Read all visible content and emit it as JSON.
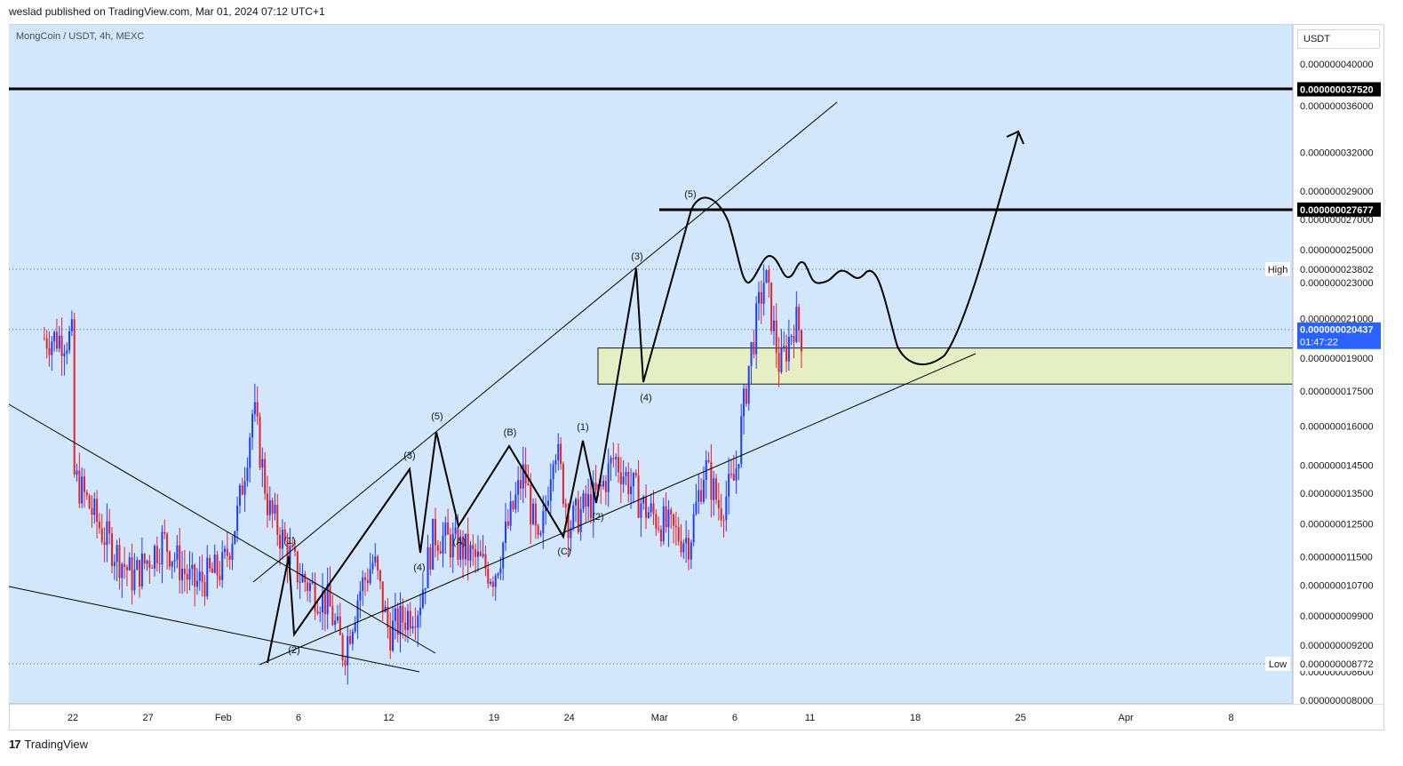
{
  "header": {
    "publish_line": "weslad published on TradingView.com, Mar 01, 2024 07:12 UTC+1"
  },
  "symbol_label": "MongCoin / USDT, 4h, MEXC",
  "currency_label": "USDT",
  "footer": {
    "logo_mark": "17",
    "logo_text": "TradingView"
  },
  "colors": {
    "background": "#d2e7fb",
    "up_candle": "#1e3cff",
    "down_candle": "#e8202a",
    "zone_fill": "#e6efc4",
    "price_tag": "#2962ff",
    "axis_bg": "#ffffff"
  },
  "chart_data": {
    "type": "candlestick",
    "symbol": "MongCoin / USDT",
    "timeframe": "4h",
    "exchange": "MEXC",
    "x_ticks": [
      "22",
      "27",
      "Feb",
      "6",
      "12",
      "19",
      "24",
      "Mar",
      "6",
      "11",
      "18",
      "25",
      "Apr",
      "8"
    ],
    "y_ticks": [
      "0.000000040000",
      "0.000000036000",
      "0.000000032000",
      "0.000000029000",
      "0.000000027000",
      "0.000000025000",
      "0.000000023000",
      "0.000000021000",
      "0.000000019000",
      "0.000000017500",
      "0.000000016000",
      "0.000000014500",
      "0.000000013500",
      "0.000000012500",
      "0.000000011500",
      "0.000000010700",
      "0.000000009900",
      "0.000000009200",
      "0.000000008600",
      "0.000000008000"
    ],
    "y_scale": "log",
    "ylim": [
      7.8e-09,
      4.25e-08
    ],
    "levels": [
      {
        "name": "resistance-1",
        "value": "0.000000037520",
        "style": "solid-bold"
      },
      {
        "name": "resistance-2",
        "value": "0.000000027677",
        "style": "solid-bold"
      },
      {
        "name": "high",
        "label": "High",
        "value": "0.000000023802",
        "style": "dotted"
      },
      {
        "name": "low",
        "label": "Low",
        "value": "0.000000008772",
        "style": "dotted"
      }
    ],
    "current_price": {
      "value": "0.000000020437",
      "countdown": "01:47:22"
    },
    "wave_labels": [
      "(1)",
      "(2)",
      "(3)",
      "(4)",
      "(5)",
      "(A)",
      "(B)",
      "(C)",
      "(1)",
      "(2)",
      "(3)",
      "(4)",
      "(5)"
    ],
    "demand_zone": {
      "from": 1.78e-08,
      "to": 1.95e-08
    }
  }
}
